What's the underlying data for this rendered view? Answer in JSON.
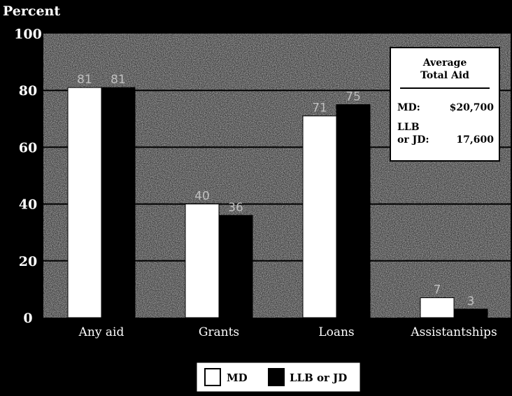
{
  "chart_data": {
    "type": "bar",
    "ylabel": "Percent",
    "ylim": [
      0,
      100
    ],
    "yticks": [
      0,
      20,
      40,
      60,
      80,
      100
    ],
    "categories": [
      "Any aid",
      "Grants",
      "Loans",
      "Assistantships"
    ],
    "series": [
      {
        "name": "MD",
        "color": "#ffffff",
        "values": [
          81,
          40,
          71,
          7
        ]
      },
      {
        "name": "LLB or JD",
        "color": "#000000",
        "values": [
          81,
          36,
          75,
          3
        ]
      }
    ],
    "data_labels": [
      [
        "81",
        "81"
      ],
      [
        "40",
        "36"
      ],
      [
        "71",
        "75"
      ],
      [
        "7",
        "3"
      ]
    ],
    "grid": true,
    "legend": "bottom-center",
    "annotation": {
      "title_line1": "Average",
      "title_line2": "Total Aid",
      "md_label": "MD:",
      "md_value": "$20,700",
      "llb_label_line1": "LLB",
      "llb_label_line2": "or JD:",
      "llb_value": "17,600"
    }
  }
}
